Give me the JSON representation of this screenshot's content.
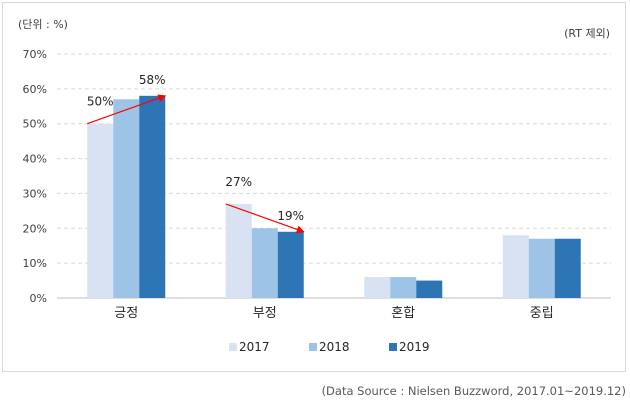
{
  "header": {
    "unit_note": "(단위 : %)",
    "exclusion_note": "(RT 제외)"
  },
  "footer": {
    "source": "(Data Source : Nielsen Buzzword, 2017.01~2019.12)"
  },
  "colors": {
    "2017": "#d9e2f3",
    "2018": "#9dc3e6",
    "2019": "#2e75b6",
    "arrow": "#ff0000"
  },
  "chart_data": {
    "type": "bar",
    "categories": [
      "긍정",
      "부정",
      "혼합",
      "중립"
    ],
    "series": [
      {
        "name": "2017",
        "values": [
          50,
          27,
          6,
          18
        ]
      },
      {
        "name": "2018",
        "values": [
          57,
          20,
          6,
          17
        ]
      },
      {
        "name": "2019",
        "values": [
          58,
          19,
          5,
          17
        ]
      }
    ],
    "ylim": [
      0,
      70
    ],
    "ytick_labels": [
      "0%",
      "10%",
      "20%",
      "30%",
      "40%",
      "50%",
      "60%",
      "70%"
    ],
    "grid": true,
    "legend_position": "bottom",
    "annotations": [
      {
        "category": "긍정",
        "from_series": "2017",
        "to_series": "2019",
        "from_label": "50%",
        "to_label": "58%"
      },
      {
        "category": "부정",
        "from_series": "2017",
        "to_series": "2019",
        "from_label": "27%",
        "to_label": "19%"
      }
    ]
  }
}
